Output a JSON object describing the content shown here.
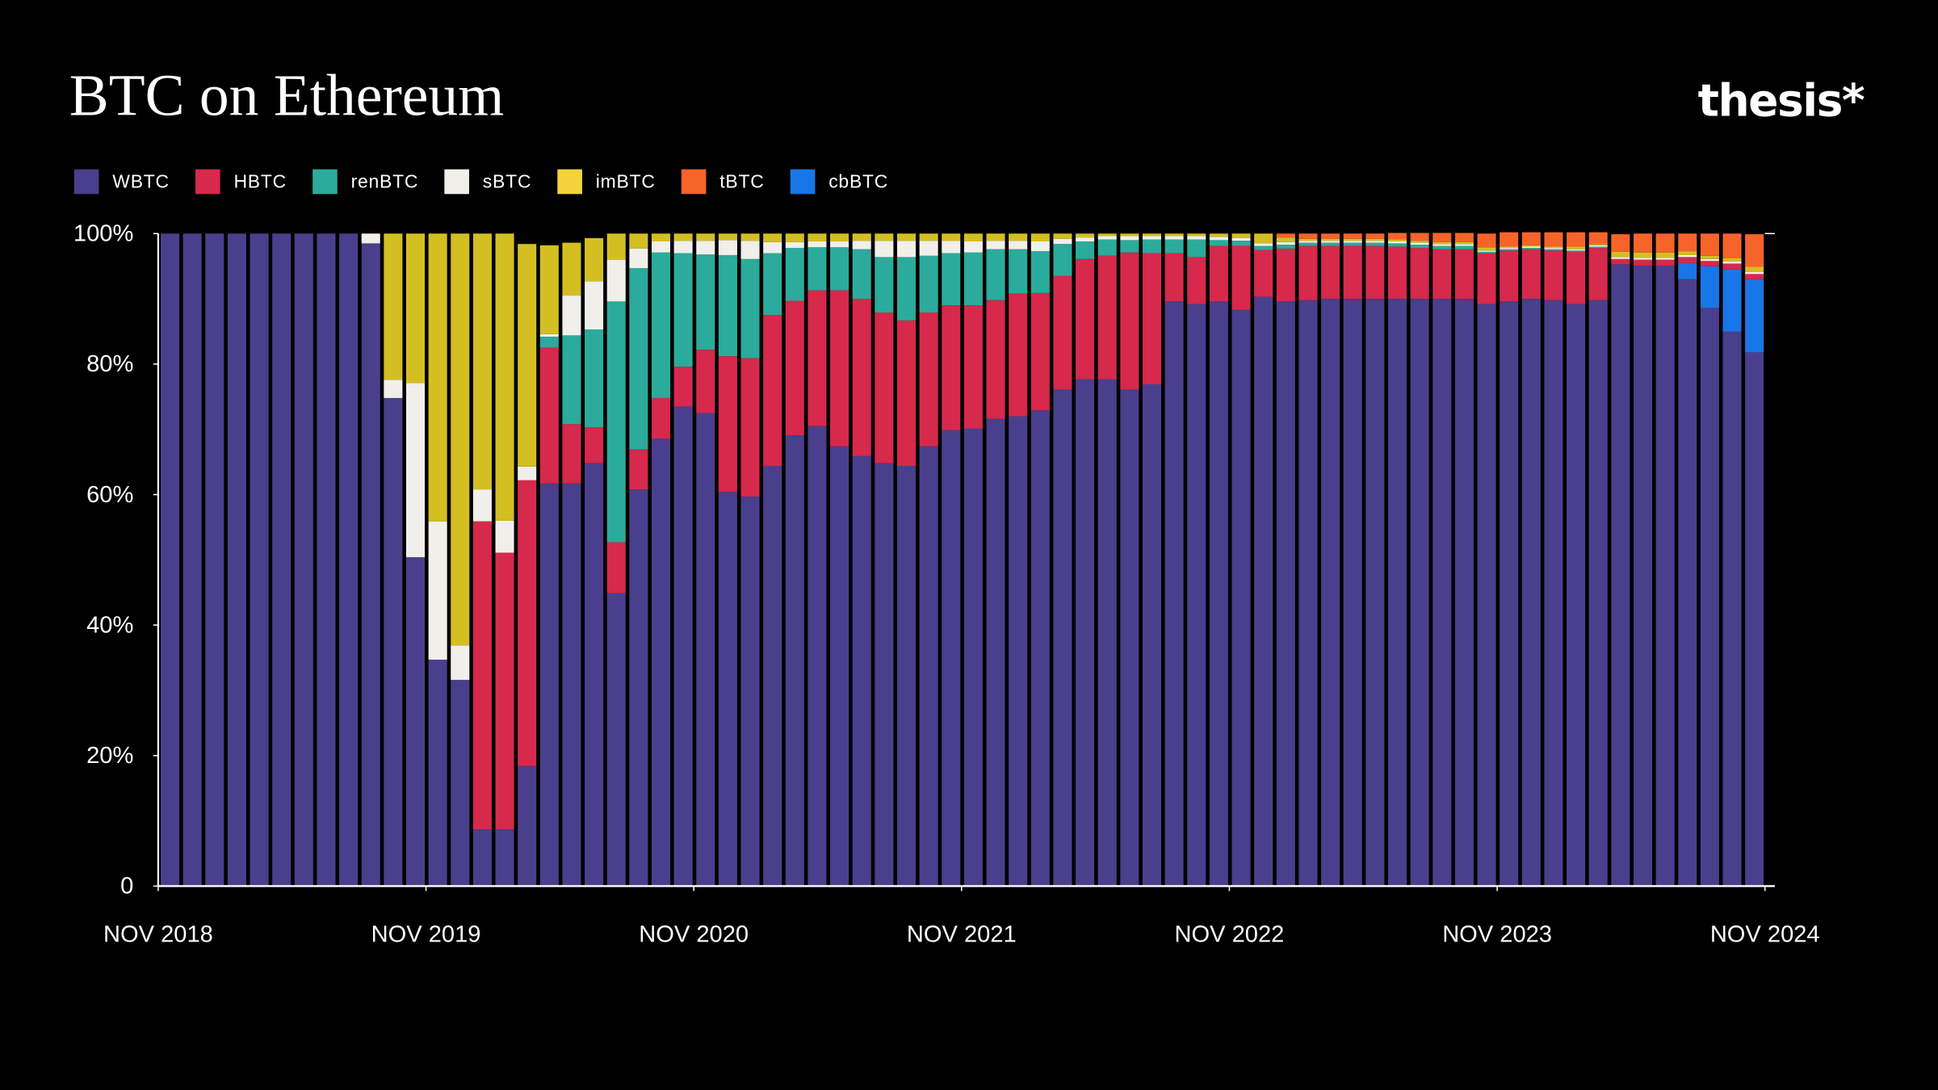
{
  "brand": "thesis*",
  "chart_data": {
    "type": "stacked_bar",
    "title": "BTC on Ethereum",
    "xlim": [
      0,
      72
    ],
    "xticks": [
      {
        "value": 0,
        "label": "NOV 2018"
      },
      {
        "value": 12,
        "label": "NOV 2019"
      },
      {
        "value": 24,
        "label": "NOV 2020"
      },
      {
        "value": 36,
        "label": "NOV 2021"
      },
      {
        "value": 48,
        "label": "NOV 2022"
      },
      {
        "value": 60,
        "label": "NOV 2023"
      },
      {
        "value": 72,
        "label": "NOV 2024"
      }
    ],
    "ylim": [
      0,
      100
    ],
    "yticks": [
      0,
      {
        "value": 20,
        "label": "20%"
      },
      {
        "value": 40,
        "label": "40%"
      },
      {
        "value": 60,
        "label": "60%"
      },
      {
        "value": 80,
        "label": "80%"
      },
      {
        "value": 100,
        "label": "100%"
      }
    ],
    "legend": "top-left",
    "series": [
      {
        "name": "WBTC",
        "color": "#4a3f8c",
        "values": [
          100,
          100,
          100,
          100,
          100,
          100,
          100,
          100,
          100,
          98.5,
          74.8,
          50.4,
          34.7,
          31.6,
          8.7,
          8.7,
          18.4,
          61.7,
          61.7,
          64.8,
          44.9,
          60.8,
          68.6,
          73.5,
          72.5,
          60.4,
          59.7,
          64.4,
          69.1,
          70.5,
          67.4,
          65.9,
          64.8,
          64.4,
          67.4,
          69.9,
          70.1,
          71.6,
          72.0,
          72.9,
          76.1,
          77.7,
          77.7,
          76.1,
          76.9,
          89.6,
          89.2,
          89.6,
          88.3,
          90.3,
          89.6,
          89.8,
          90.0,
          90.0,
          90.0,
          90.0,
          90.0,
          90.0,
          90.0,
          89.2,
          89.6,
          90.0,
          89.8,
          89.2,
          89.8,
          95.3,
          95.1,
          95.1,
          93.0,
          88.6,
          85.0,
          81.8
        ]
      },
      {
        "name": "HBTC",
        "color": "#d6294b",
        "values": [
          0,
          0,
          0,
          0,
          0,
          0,
          0,
          0,
          0,
          0,
          0,
          0,
          0,
          0,
          47.2,
          42.4,
          43.8,
          20.8,
          9.1,
          5.5,
          7.8,
          6.1,
          6.2,
          6.1,
          9.7,
          20.8,
          21.2,
          23.1,
          20.6,
          20.8,
          23.9,
          24.1,
          23.1,
          22.3,
          20.5,
          19.1,
          18.9,
          18.2,
          18.8,
          18.0,
          17.4,
          18.4,
          18.9,
          21.0,
          20.1,
          7.4,
          7.2,
          8.5,
          9.8,
          7.2,
          8.1,
          8.3,
          8.1,
          8.1,
          8.1,
          8.0,
          7.8,
          7.6,
          7.6,
          7.8,
          7.8,
          7.6,
          7.6,
          8.0,
          8.0,
          0.8,
          0.9,
          0.9,
          0.9,
          0.8,
          0.9,
          0.8
        ]
      },
      {
        "name": "renBTC",
        "color": "#2bab9b",
        "values": [
          0,
          0,
          0,
          0,
          0,
          0,
          0,
          0,
          0,
          0,
          0,
          0,
          0,
          0,
          0,
          0,
          0,
          1.7,
          13.6,
          15.0,
          36.9,
          27.8,
          22.3,
          17.4,
          14.6,
          15.5,
          15.2,
          9.5,
          8.1,
          6.6,
          6.6,
          7.6,
          8.5,
          9.7,
          8.7,
          8.0,
          8.1,
          7.8,
          6.8,
          6.4,
          4.9,
          2.7,
          2.5,
          1.9,
          2.1,
          2.1,
          2.7,
          0.9,
          0.8,
          0.6,
          0.6,
          0.5,
          0.5,
          0.5,
          0.5,
          0.5,
          0.5,
          0.5,
          0.5,
          0.2,
          0.2,
          0.2,
          0.2,
          0.2,
          0.2,
          0,
          0,
          0,
          0,
          0,
          0,
          0
        ]
      },
      {
        "name": "sBTC",
        "color": "#f1efea",
        "values": [
          0,
          0,
          0,
          0,
          0,
          0,
          0,
          0,
          0,
          1.5,
          2.8,
          26.7,
          21.2,
          5.3,
          4.9,
          4.9,
          2.1,
          0.4,
          6.1,
          7.4,
          6.4,
          3.0,
          1.7,
          1.9,
          2.1,
          2.3,
          2.8,
          1.7,
          0.9,
          0.9,
          0.9,
          1.3,
          2.5,
          2.5,
          2.3,
          1.9,
          1.7,
          1.3,
          1.3,
          1.5,
          0.8,
          0.6,
          0.5,
          0.6,
          0.5,
          0.5,
          0.5,
          0.5,
          0.4,
          0.4,
          0.4,
          0.3,
          0.3,
          0.3,
          0.3,
          0.3,
          0.3,
          0.3,
          0.3,
          0.2,
          0.2,
          0.2,
          0.2,
          0.2,
          0.2,
          0.3,
          0.3,
          0.3,
          0.3,
          0.3,
          0.3,
          0.3
        ]
      },
      {
        "name": "imBTC",
        "color": "#d4bf22",
        "values": [
          0,
          0,
          0,
          0,
          0,
          0,
          0,
          0,
          0,
          0,
          22.4,
          22.9,
          44.1,
          63.1,
          39.2,
          44.0,
          34.1,
          13.6,
          8.1,
          6.6,
          4.0,
          2.3,
          1.2,
          1.1,
          1.1,
          1.0,
          1.1,
          1.3,
          1.3,
          1.2,
          1.2,
          1.1,
          1.1,
          1.1,
          1.1,
          1.1,
          1.2,
          1.1,
          1.1,
          1.2,
          0.8,
          0.6,
          0.4,
          0.4,
          0.4,
          0.4,
          0.4,
          0.5,
          0.7,
          1.5,
          0.7,
          0.3,
          0.3,
          0.3,
          0.3,
          0.3,
          0.3,
          0.3,
          0.3,
          0.5,
          0.2,
          0.2,
          0.2,
          0.4,
          0.2,
          0.8,
          0.8,
          0.8,
          0.6,
          0.5,
          0.5,
          0.8
        ]
      },
      {
        "name": "tBTC",
        "color": "#f7642a",
        "values": [
          0,
          0,
          0,
          0,
          0,
          0,
          0,
          0,
          0,
          0,
          0,
          0,
          0,
          0,
          0,
          0,
          0,
          0,
          0,
          0,
          0,
          0,
          0,
          0,
          0,
          0,
          0,
          0,
          0,
          0,
          0,
          0,
          0,
          0,
          0,
          0,
          0,
          0,
          0,
          0,
          0,
          0,
          0,
          0,
          0,
          0,
          0,
          0,
          0,
          0,
          0.6,
          0.8,
          0.8,
          0.8,
          0.8,
          1.0,
          1.2,
          1.4,
          1.4,
          2.1,
          2.2,
          2.0,
          2.2,
          2.2,
          1.8,
          2.7,
          2.9,
          2.9,
          2.7,
          3.4,
          3.8,
          5.0
        ]
      },
      {
        "name": "cbBTC",
        "color": "#1976e8",
        "values": [
          0,
          0,
          0,
          0,
          0,
          0,
          0,
          0,
          0,
          0,
          0,
          0,
          0,
          0,
          0,
          0,
          0,
          0,
          0,
          0,
          0,
          0,
          0,
          0,
          0,
          0,
          0,
          0,
          0,
          0,
          0,
          0,
          0,
          0,
          0,
          0,
          0,
          0,
          0,
          0,
          0,
          0,
          0,
          0,
          0,
          0,
          0,
          0,
          0,
          0,
          0,
          0,
          0,
          0,
          0,
          0,
          0,
          0,
          0,
          0,
          0,
          0,
          0,
          0,
          0,
          0,
          0,
          0,
          2.5,
          6.4,
          9.5,
          11.2
        ]
      }
    ]
  }
}
